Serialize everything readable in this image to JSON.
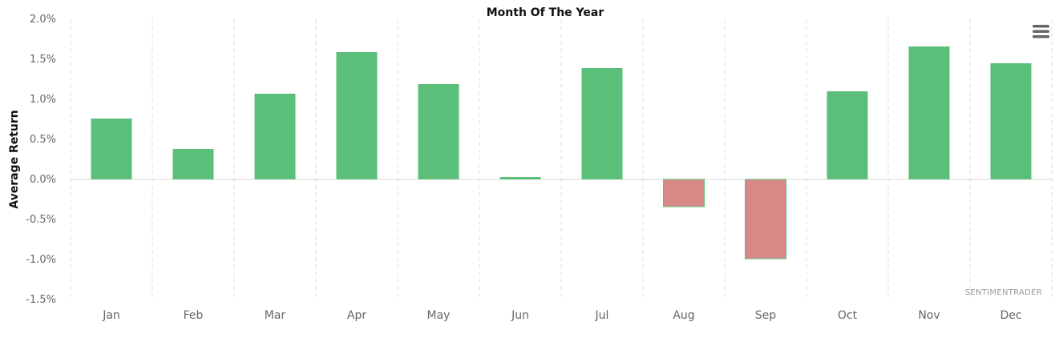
{
  "chart_data": {
    "type": "bar",
    "title": "Month Of The Year",
    "xlabel": "",
    "ylabel": "Average Return",
    "categories": [
      "Jan",
      "Feb",
      "Mar",
      "Apr",
      "May",
      "Jun",
      "Jul",
      "Aug",
      "Sep",
      "Oct",
      "Nov",
      "Dec"
    ],
    "values": [
      0.76,
      0.38,
      1.07,
      1.59,
      1.19,
      0.03,
      1.39,
      -0.34,
      -0.99,
      1.1,
      1.66,
      1.45
    ],
    "ylim": [
      -1.5,
      2.0
    ],
    "yticks": [
      2.0,
      1.5,
      1.0,
      0.5,
      0.0,
      -0.5,
      -1.0,
      -1.5
    ],
    "ytick_labels": [
      "2.0%",
      "1.5%",
      "1.0%",
      "0.5%",
      "0.0%",
      "-0.5%",
      "-1.0%",
      "-1.5%"
    ],
    "grid": "vertical-dashed",
    "legend": "none",
    "colors": {
      "positive": "#5bbf7a",
      "negative": "#d98888",
      "negative_border": "#5bbf7a"
    }
  },
  "watermark": "SENTIMENTRADER",
  "menu": {
    "icon": "hamburger-menu-icon"
  }
}
